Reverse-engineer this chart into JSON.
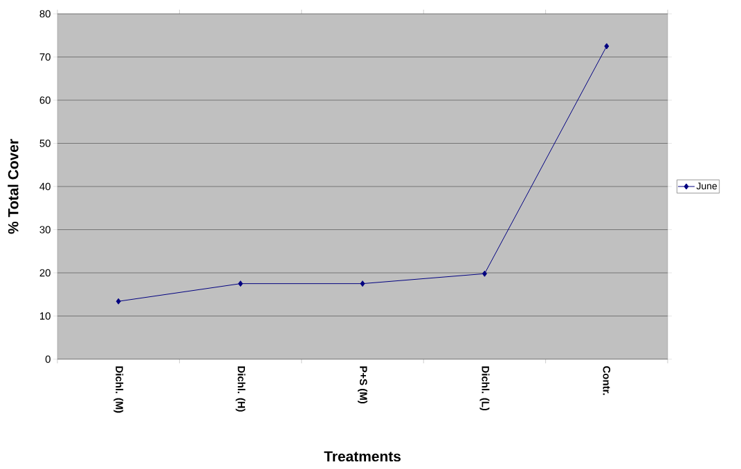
{
  "chart_data": {
    "type": "line",
    "xlabel": "Treatments",
    "ylabel": "% Total Cover",
    "categories": [
      "Dichl. (M)",
      "Dichl. (H)",
      "P+S (M)",
      "Dichl. (L)",
      "Contr."
    ],
    "series": [
      {
        "name": "June",
        "color": "#000080",
        "values": [
          13.4,
          17.5,
          17.5,
          19.8,
          72.5
        ]
      }
    ],
    "ylim": [
      0,
      80
    ],
    "yticks": [
      0,
      10,
      20,
      30,
      40,
      50,
      60,
      70,
      80
    ],
    "grid": "y",
    "legend": "right",
    "marker": "diamond",
    "line_style": "solid"
  }
}
